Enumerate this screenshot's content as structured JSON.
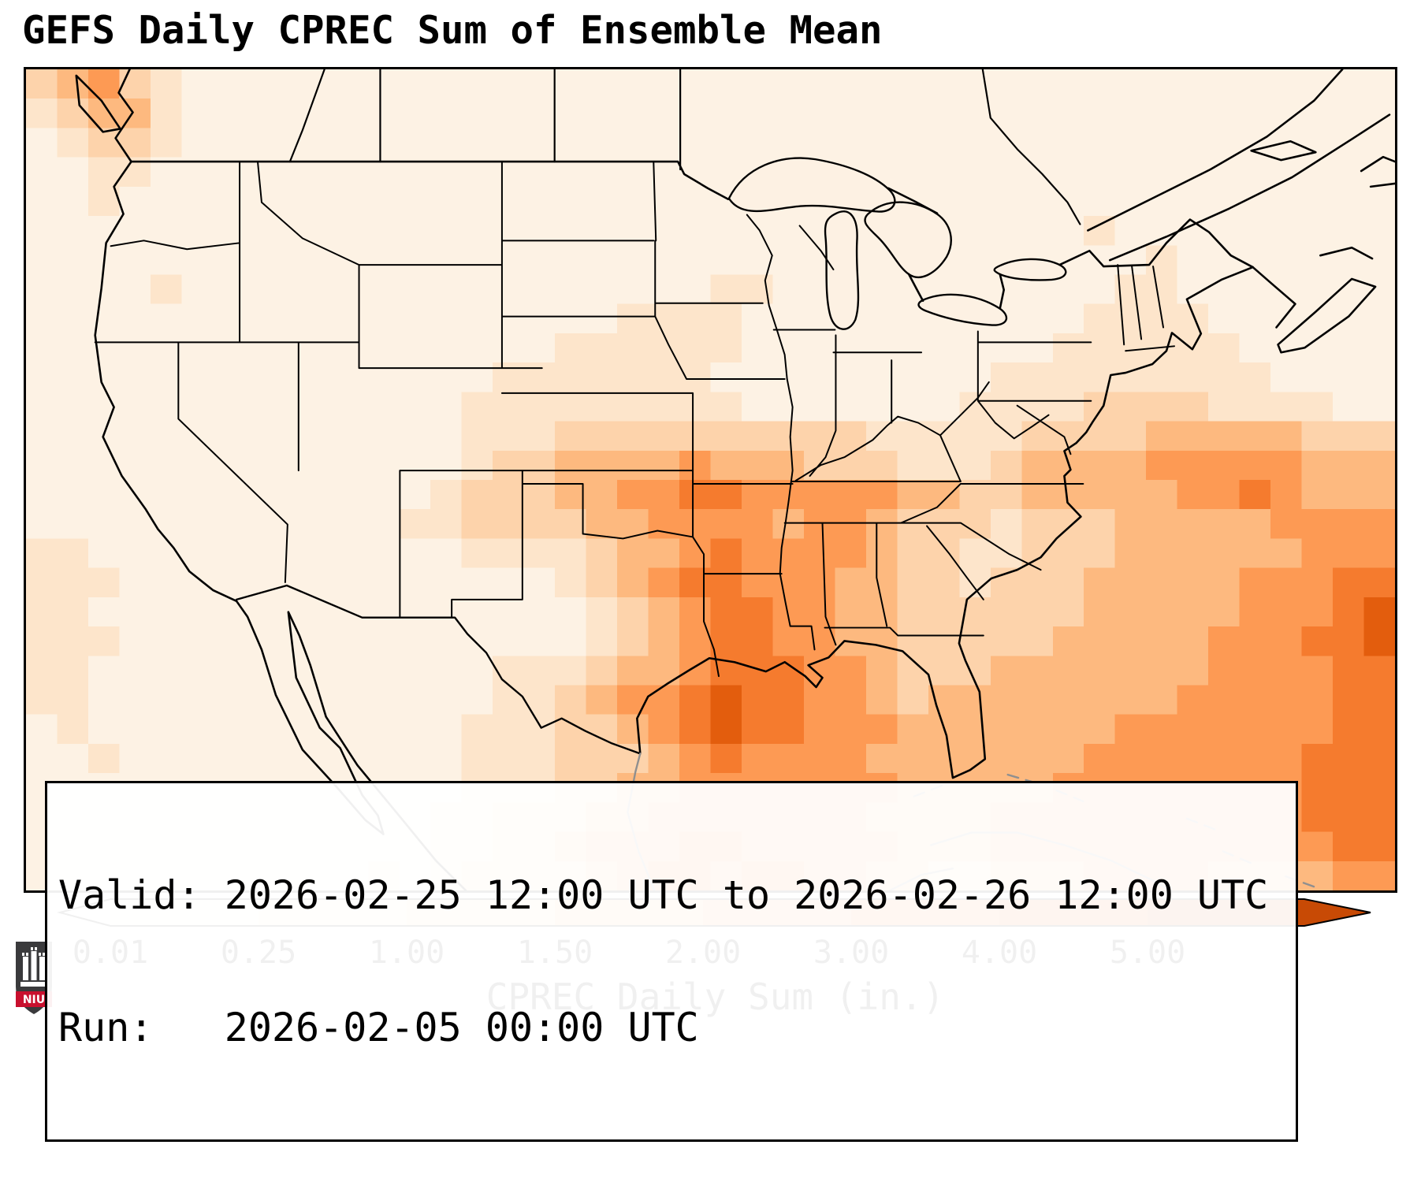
{
  "title": "GEFS Daily CPREC Sum of Ensemble Mean",
  "info_box": {
    "valid_line": "Valid: 2026-02-25 12:00 UTC to 2026-02-26 12:00 UTC",
    "run_line": "Run:   2026-02-05 00:00 UTC"
  },
  "colorbar": {
    "label": "CPREC Daily Sum (in.)",
    "ticks": [
      "0.01",
      "0.25",
      "1.00",
      "1.50",
      "2.00",
      "3.00",
      "4.00",
      "5.00"
    ],
    "under_color": "#ffffff",
    "segment_colors": [
      "#fdf2e4",
      "#fde5cb",
      "#fdd3ab",
      "#fdb97f",
      "#fd9a54",
      "#f57b2e",
      "#e35d0d"
    ],
    "over_color": "#c84a05"
  },
  "logo": {
    "text": "NIU",
    "shield_color": "#3a3a3c",
    "banner_color": "#c8102e"
  },
  "chart_data": {
    "type": "heatmap",
    "title": "GEFS Daily CPREC Sum of Ensemble Mean",
    "colorbar_label": "CPREC Daily Sum (in.)",
    "units": "in.",
    "valid": "2026-02-25 12:00 UTC to 2026-02-26 12:00 UTC",
    "run": "2026-02-05 00:00 UTC",
    "levels": [
      0.01,
      0.25,
      1.0,
      1.5,
      2.0,
      3.0,
      4.0,
      5.0
    ],
    "colormap": [
      "#ffffff",
      "#fdf2e4",
      "#fde5cb",
      "#fdd3ab",
      "#fdb97f",
      "#fd9a54",
      "#f57b2e",
      "#e35d0d",
      "#c84a05"
    ],
    "bin_meaning": "grid digit = colormap index: 0 <0.01in, 1 0.01-0.25, 2 0.25-1.00, 3 1.00-1.50, 4 1.50-2.00, 5 2.00-3.00, 6 3.00-4.00, 7 4.00-5.00, 8 >5.00",
    "grid": {
      "cols": 44,
      "rows": 28,
      "rows_encoded": [
        "3453 2111 1100 0011 1101 1111 1111 1111 1111 1111 1111",
        "2344 2111 1100 1111 1001 1111 1111 1111 1111 1111 1111",
        "1233 2111 1110 0111 1110 0111 1111 1111 1111 1111 1111",
        "1122 1111 1100 1100 1111 0111 1111 1111 1111 1111 1111",
        "1121 1111 1110 0110 0111 1111 1111 1111 1111 1111 1111",
        "1111 1111 1111 0111 1011 1111 1111 1111 1121 1111 1111",
        "1111 1111 1111 1100 1111 1111 1111 1111 1111 2111 1111",
        "1111 2111 1111 1111 1111 1122 1111 1111 1112 2111 1111",
        "1111 1111 1111 1111 1112 2221 1111 1111 1122 2211 1111",
        "1111 1111 1111 1111 1222 2221 1111 1111 1222 2221 1111",
        "1111 1111 1111 1112 2222 2211 1111 1112 2222 2222 1111",
        "1111 1111 1111 1122 2222 2221 1111 1122 2233 3322 2211",
        "1111 1111 1111 1122 2333 3333 3332 2222 3333 4444 4333",
        "1111 1111 1111 1123 3444 4544 4333 2223 4444 5555 5444",
        "1111 1111 1111 1233 3445 5665 5555 4433 4444 4556 5444",
        "1111 1111 1111 2233 3344 5555 4554 3332 3334 4444 5555",
        "2211 1111 1111 1122 2234 4565 5554 3322 3334 4444 4555",
        "2221 1111 1111 1111 1234 5665 5544 3323 3344 4445 5566",
        "2211 1111 1111 1111 1123 4566 5544 3333 3344 4445 5567",
        "2221 1111 1111 1111 1123 4566 5544 3333 3444 4455 5667",
        "2211 1111 1111 1112 2234 4566 6554 3334 4444 4455 5566",
        "2211 1111 1111 1112 2345 5676 6554 3444 4444 4555 5566",
        "1211 1111 1111 1122 2334 5676 6555 4444 4445 5555 5566",
        "1121 1111 1111 1122 2333 4565 5554 4444 4455 5555 5666",
        "1111 1111 1111 1122 2334 4555 5555 4444 4555 5555 5666",
        "1111 1111 1111 1223 3344 5555 5554 4445 5555 5555 5666",
        "1111 1111 1111 1223 3455 5665 5555 4445 5555 5555 5566",
        "1111 1111 1112 1233 3345 6656 6554 4334 4455 5544 4455"
      ]
    }
  }
}
